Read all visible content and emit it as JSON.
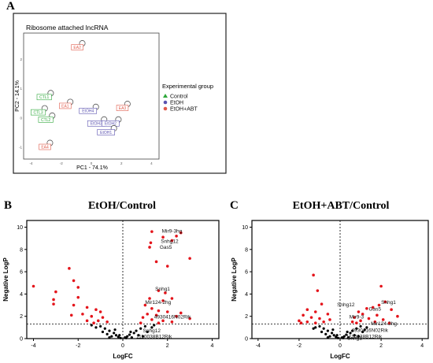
{
  "panels": [
    {
      "letter": "A"
    },
    {
      "letter": "B"
    },
    {
      "letter": "C"
    }
  ],
  "chart_data": [
    {
      "type": "scatter",
      "title": "Ribosome attached lncRNA",
      "xlabel": "PC1 - 74.1%",
      "ylabel": "PC2 - 14.1%",
      "xlim": [
        -4.5,
        4.5
      ],
      "ylim": [
        -1.4,
        2.9
      ],
      "xticks": [
        -4,
        -2,
        0,
        2,
        4
      ],
      "yticks": [
        -1,
        0,
        1,
        2
      ],
      "legend": {
        "title": "Experimental group",
        "position": "right",
        "entries": [
          {
            "label": "Control",
            "color": "#2ea83a",
            "marker": "triangle-up"
          },
          {
            "label": "EtOH",
            "color": "#5a52b0",
            "marker": "circle"
          },
          {
            "label": "EtOH+ABT",
            "color": "#e05a4a",
            "marker": "circle"
          }
        ]
      },
      "series": [
        {
          "name": "Control",
          "color": "#2ea83a",
          "points": [
            {
              "label": "CTL1",
              "x": -2.7,
              "y": 0.85
            },
            {
              "label": "CTL3",
              "x": -3.1,
              "y": 0.33
            },
            {
              "label": "CTL2",
              "x": -2.6,
              "y": 0.08
            }
          ]
        },
        {
          "name": "EtOH",
          "color": "#5a52b0",
          "points": [
            {
              "label": "EtOH4",
              "x": 0.3,
              "y": 0.38
            },
            {
              "label": "EtOH3",
              "x": 0.85,
              "y": -0.05
            },
            {
              "label": "EtOH2",
              "x": 1.8,
              "y": -0.05
            },
            {
              "label": "EtOH1",
              "x": 1.5,
              "y": -0.35
            }
          ]
        },
        {
          "name": "EtOH+ABT",
          "color": "#e05a4a",
          "points": [
            {
              "label": "EA2",
              "x": -0.6,
              "y": 2.55
            },
            {
              "label": "EA1",
              "x": -1.4,
              "y": 0.55
            },
            {
              "label": "EA3",
              "x": 2.4,
              "y": 0.48
            },
            {
              "label": "EA4",
              "x": -2.75,
              "y": -0.85
            }
          ]
        }
      ]
    },
    {
      "type": "scatter",
      "title": "EtOH/Control",
      "xlabel": "LogFC",
      "ylabel": "Negative LogP",
      "xlim": [
        -4.3,
        4.3
      ],
      "ylim": [
        0,
        10.6
      ],
      "xticks": [
        -4,
        -2,
        0,
        2,
        4
      ],
      "yticks": [
        0,
        2,
        4,
        6,
        8,
        10
      ],
      "thresholds": {
        "x": 0,
        "y": 1.3
      },
      "labels": [
        {
          "text": "Mir9-3hg",
          "x": 1.75,
          "y": 9.5
        },
        {
          "text": "Snhg12",
          "x": 1.7,
          "y": 8.6
        },
        {
          "text": "Gas5",
          "x": 1.65,
          "y": 8.05
        },
        {
          "text": "Snhg1",
          "x": 1.45,
          "y": 4.3
        },
        {
          "text": "Mir124-2hg",
          "x": 1.0,
          "y": 3.1
        },
        {
          "text": "4930416N02Rik",
          "x": 1.4,
          "y": 1.8
        },
        {
          "text": "Snhg12",
          "x": 0.9,
          "y": 0.55
        },
        {
          "text": "1110038B12Rik",
          "x": 0.6,
          "y": 0.05
        }
      ],
      "sig_points": [
        [
          1.3,
          9.6
        ],
        [
          2.6,
          9.5
        ],
        [
          1.8,
          9.1
        ],
        [
          2.4,
          9.2
        ],
        [
          1.25,
          8.6
        ],
        [
          2.2,
          8.8
        ],
        [
          1.2,
          8.2
        ],
        [
          3.0,
          7.2
        ],
        [
          1.5,
          6.9
        ],
        [
          2.0,
          6.5
        ],
        [
          -2.4,
          6.3
        ],
        [
          -4.0,
          4.7
        ],
        [
          -3.0,
          4.2
        ],
        [
          -2.2,
          5.2
        ],
        [
          -2.0,
          4.6
        ],
        [
          -3.1,
          3.5
        ],
        [
          -2.0,
          3.7
        ],
        [
          -3.1,
          3.1
        ],
        [
          -2.2,
          3.0
        ],
        [
          -1.6,
          2.8
        ],
        [
          -1.2,
          2.6
        ],
        [
          -1.0,
          2.4
        ],
        [
          -1.8,
          2.2
        ],
        [
          -1.4,
          2.0
        ],
        [
          -0.9,
          1.9
        ],
        [
          -2.3,
          2.1
        ],
        [
          -1.1,
          1.6
        ],
        [
          -0.7,
          1.5
        ],
        [
          -1.6,
          1.6
        ],
        [
          -1.3,
          1.4
        ],
        [
          1.6,
          4.3
        ],
        [
          1.9,
          4.1
        ],
        [
          1.2,
          3.6
        ],
        [
          2.2,
          3.6
        ],
        [
          1.8,
          3.4
        ],
        [
          1.0,
          3.0
        ],
        [
          1.3,
          2.7
        ],
        [
          1.6,
          2.5
        ],
        [
          2.0,
          2.4
        ],
        [
          1.1,
          2.2
        ],
        [
          1.5,
          2.1
        ],
        [
          2.4,
          2.0
        ],
        [
          0.9,
          1.9
        ],
        [
          1.3,
          1.7
        ],
        [
          1.8,
          1.6
        ],
        [
          2.2,
          1.5
        ],
        [
          0.8,
          1.4
        ],
        [
          1.6,
          1.4
        ],
        [
          2.6,
          2.3
        ],
        [
          3.0,
          1.8
        ]
      ],
      "ns_points": [
        [
          -1.0,
          1.1
        ],
        [
          -0.8,
          0.9
        ],
        [
          -0.6,
          0.7
        ],
        [
          -0.4,
          0.5
        ],
        [
          -0.3,
          0.3
        ],
        [
          -0.2,
          0.15
        ],
        [
          -0.1,
          0.05
        ],
        [
          0.1,
          0.1
        ],
        [
          0.2,
          0.2
        ],
        [
          0.3,
          0.35
        ],
        [
          0.5,
          0.5
        ],
        [
          0.6,
          0.7
        ],
        [
          0.8,
          0.9
        ],
        [
          1.0,
          1.1
        ],
        [
          -0.5,
          0.2
        ],
        [
          -0.7,
          0.4
        ],
        [
          0.4,
          0.1
        ],
        [
          0.7,
          0.3
        ],
        [
          1.1,
          0.6
        ],
        [
          -0.9,
          0.6
        ],
        [
          -1.2,
          1.0
        ],
        [
          1.3,
          1.0
        ],
        [
          0.15,
          0.05
        ],
        [
          -0.15,
          0.3
        ],
        [
          0.35,
          0.6
        ],
        [
          -0.35,
          0.8
        ],
        [
          0.9,
          0.2
        ],
        [
          -0.6,
          0.1
        ],
        [
          1.4,
          1.2
        ],
        [
          -1.4,
          1.2
        ]
      ]
    },
    {
      "type": "scatter",
      "title": "EtOH+ABT/Control",
      "xlabel": "LogFC",
      "ylabel": "Negative LogP",
      "xlim": [
        -4.3,
        4.3
      ],
      "ylim": [
        0,
        10.6
      ],
      "xticks": [
        -4,
        -2,
        0,
        2,
        4
      ],
      "yticks": [
        0,
        2,
        4,
        6,
        8,
        10
      ],
      "thresholds": {
        "x": 0,
        "y": 1.3
      },
      "labels": [
        {
          "text": "Snhg12",
          "x": -0.15,
          "y": 2.9
        },
        {
          "text": "Snhg1",
          "x": 2.0,
          "y": 3.1
        },
        {
          "text": "Gas5",
          "x": 1.4,
          "y": 2.5
        },
        {
          "text": "Mir9-3",
          "x": 0.45,
          "y": 1.8
        },
        {
          "text": "Mir124-2hg",
          "x": 1.5,
          "y": 1.2
        },
        {
          "text": "4930416N02Rik",
          "x": 0.55,
          "y": 0.6
        },
        {
          "text": "1110038B12Rik",
          "x": 0.3,
          "y": 0.05
        },
        {
          "text": "Snhg1",
          "x": 0.35,
          "y": -0.1
        }
      ],
      "sig_points": [
        [
          -1.3,
          5.7
        ],
        [
          -1.1,
          4.3
        ],
        [
          -0.9,
          3.1
        ],
        [
          -1.6,
          2.6
        ],
        [
          -1.2,
          2.4
        ],
        [
          -0.6,
          2.2
        ],
        [
          -1.8,
          2.1
        ],
        [
          -1.4,
          1.9
        ],
        [
          -1.0,
          1.8
        ],
        [
          -0.5,
          1.7
        ],
        [
          -2.0,
          1.6
        ],
        [
          -1.6,
          1.5
        ],
        [
          -0.8,
          1.5
        ],
        [
          -1.2,
          1.4
        ],
        [
          -1.9,
          1.4
        ],
        [
          2.0,
          4.7
        ],
        [
          2.2,
          3.3
        ],
        [
          1.9,
          3.0
        ],
        [
          1.6,
          2.8
        ],
        [
          1.3,
          2.7
        ],
        [
          2.5,
          2.6
        ],
        [
          0.9,
          2.4
        ],
        [
          1.1,
          2.2
        ],
        [
          1.8,
          2.1
        ],
        [
          2.8,
          2.0
        ],
        [
          0.7,
          1.9
        ],
        [
          1.4,
          1.8
        ],
        [
          2.1,
          1.7
        ],
        [
          1.0,
          1.6
        ],
        [
          0.6,
          1.5
        ],
        [
          1.7,
          1.5
        ],
        [
          2.4,
          1.4
        ],
        [
          0.8,
          1.4
        ]
      ],
      "ns_points": [
        [
          -1.0,
          1.1
        ],
        [
          -0.8,
          0.9
        ],
        [
          -0.6,
          0.7
        ],
        [
          -0.4,
          0.5
        ],
        [
          -0.3,
          0.3
        ],
        [
          -0.2,
          0.15
        ],
        [
          -0.1,
          0.05
        ],
        [
          0.1,
          0.1
        ],
        [
          0.2,
          0.2
        ],
        [
          0.3,
          0.35
        ],
        [
          0.5,
          0.5
        ],
        [
          0.6,
          0.7
        ],
        [
          0.8,
          0.9
        ],
        [
          1.0,
          1.1
        ],
        [
          -0.5,
          0.2
        ],
        [
          -0.7,
          0.4
        ],
        [
          0.4,
          0.1
        ],
        [
          0.7,
          0.3
        ],
        [
          1.1,
          0.6
        ],
        [
          -0.9,
          0.6
        ],
        [
          -1.2,
          1.0
        ],
        [
          1.3,
          1.0
        ],
        [
          0.15,
          0.05
        ],
        [
          -0.15,
          0.3
        ],
        [
          0.35,
          0.6
        ],
        [
          -0.35,
          0.8
        ],
        [
          0.9,
          0.2
        ],
        [
          -0.6,
          0.1
        ],
        [
          1.2,
          0.8
        ],
        [
          -1.3,
          0.9
        ]
      ]
    }
  ]
}
